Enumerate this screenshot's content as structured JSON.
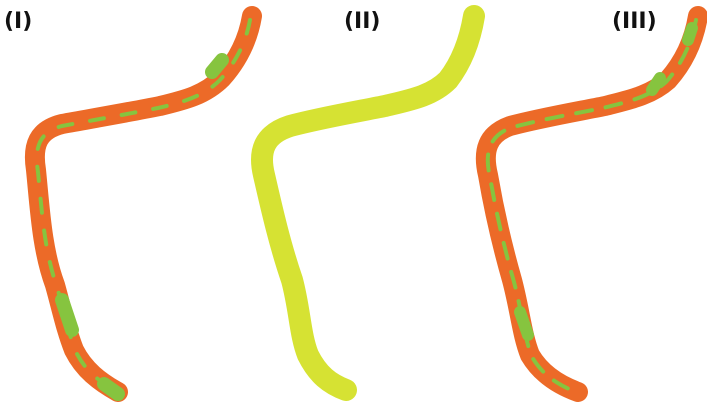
{
  "panels": [
    {
      "label": "(I)"
    },
    {
      "label": "(II)"
    },
    {
      "label": "(III)"
    }
  ]
}
